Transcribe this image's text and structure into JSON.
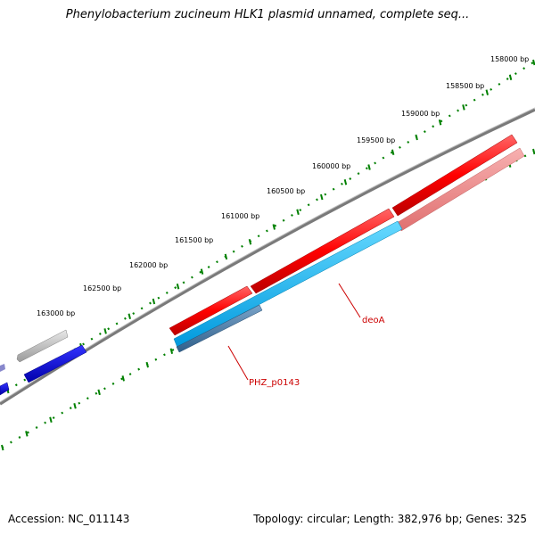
{
  "title": "Phenylobacterium zucineum HLK1 plasmid unnamed, complete seq...",
  "accession_label": "Accession: NC_011143",
  "summary_label": "Topology: circular; Length: 382,976 bp; Genes: 325",
  "ruler": {
    "tick_labels": [
      "158000 bp",
      "158500 bp",
      "159000 bp",
      "159500 bp",
      "160000 bp",
      "160500 bp",
      "161000 bp",
      "161500 bp",
      "162000 bp",
      "162500 bp",
      "163000 bp"
    ]
  },
  "gene_labels": {
    "deoA": "deoA",
    "phz": "PHZ_p0143"
  },
  "colors": {
    "tick": "#008000",
    "backbone": "#808080",
    "forward_gene": "#ff0000",
    "forward_gene_light": "#f08080",
    "cds": "#00bfff",
    "cds_dark": "#4682b4",
    "blue_gene": "#0000ff",
    "grey_gene": "#c0c0c0",
    "label": "#cc0000"
  }
}
